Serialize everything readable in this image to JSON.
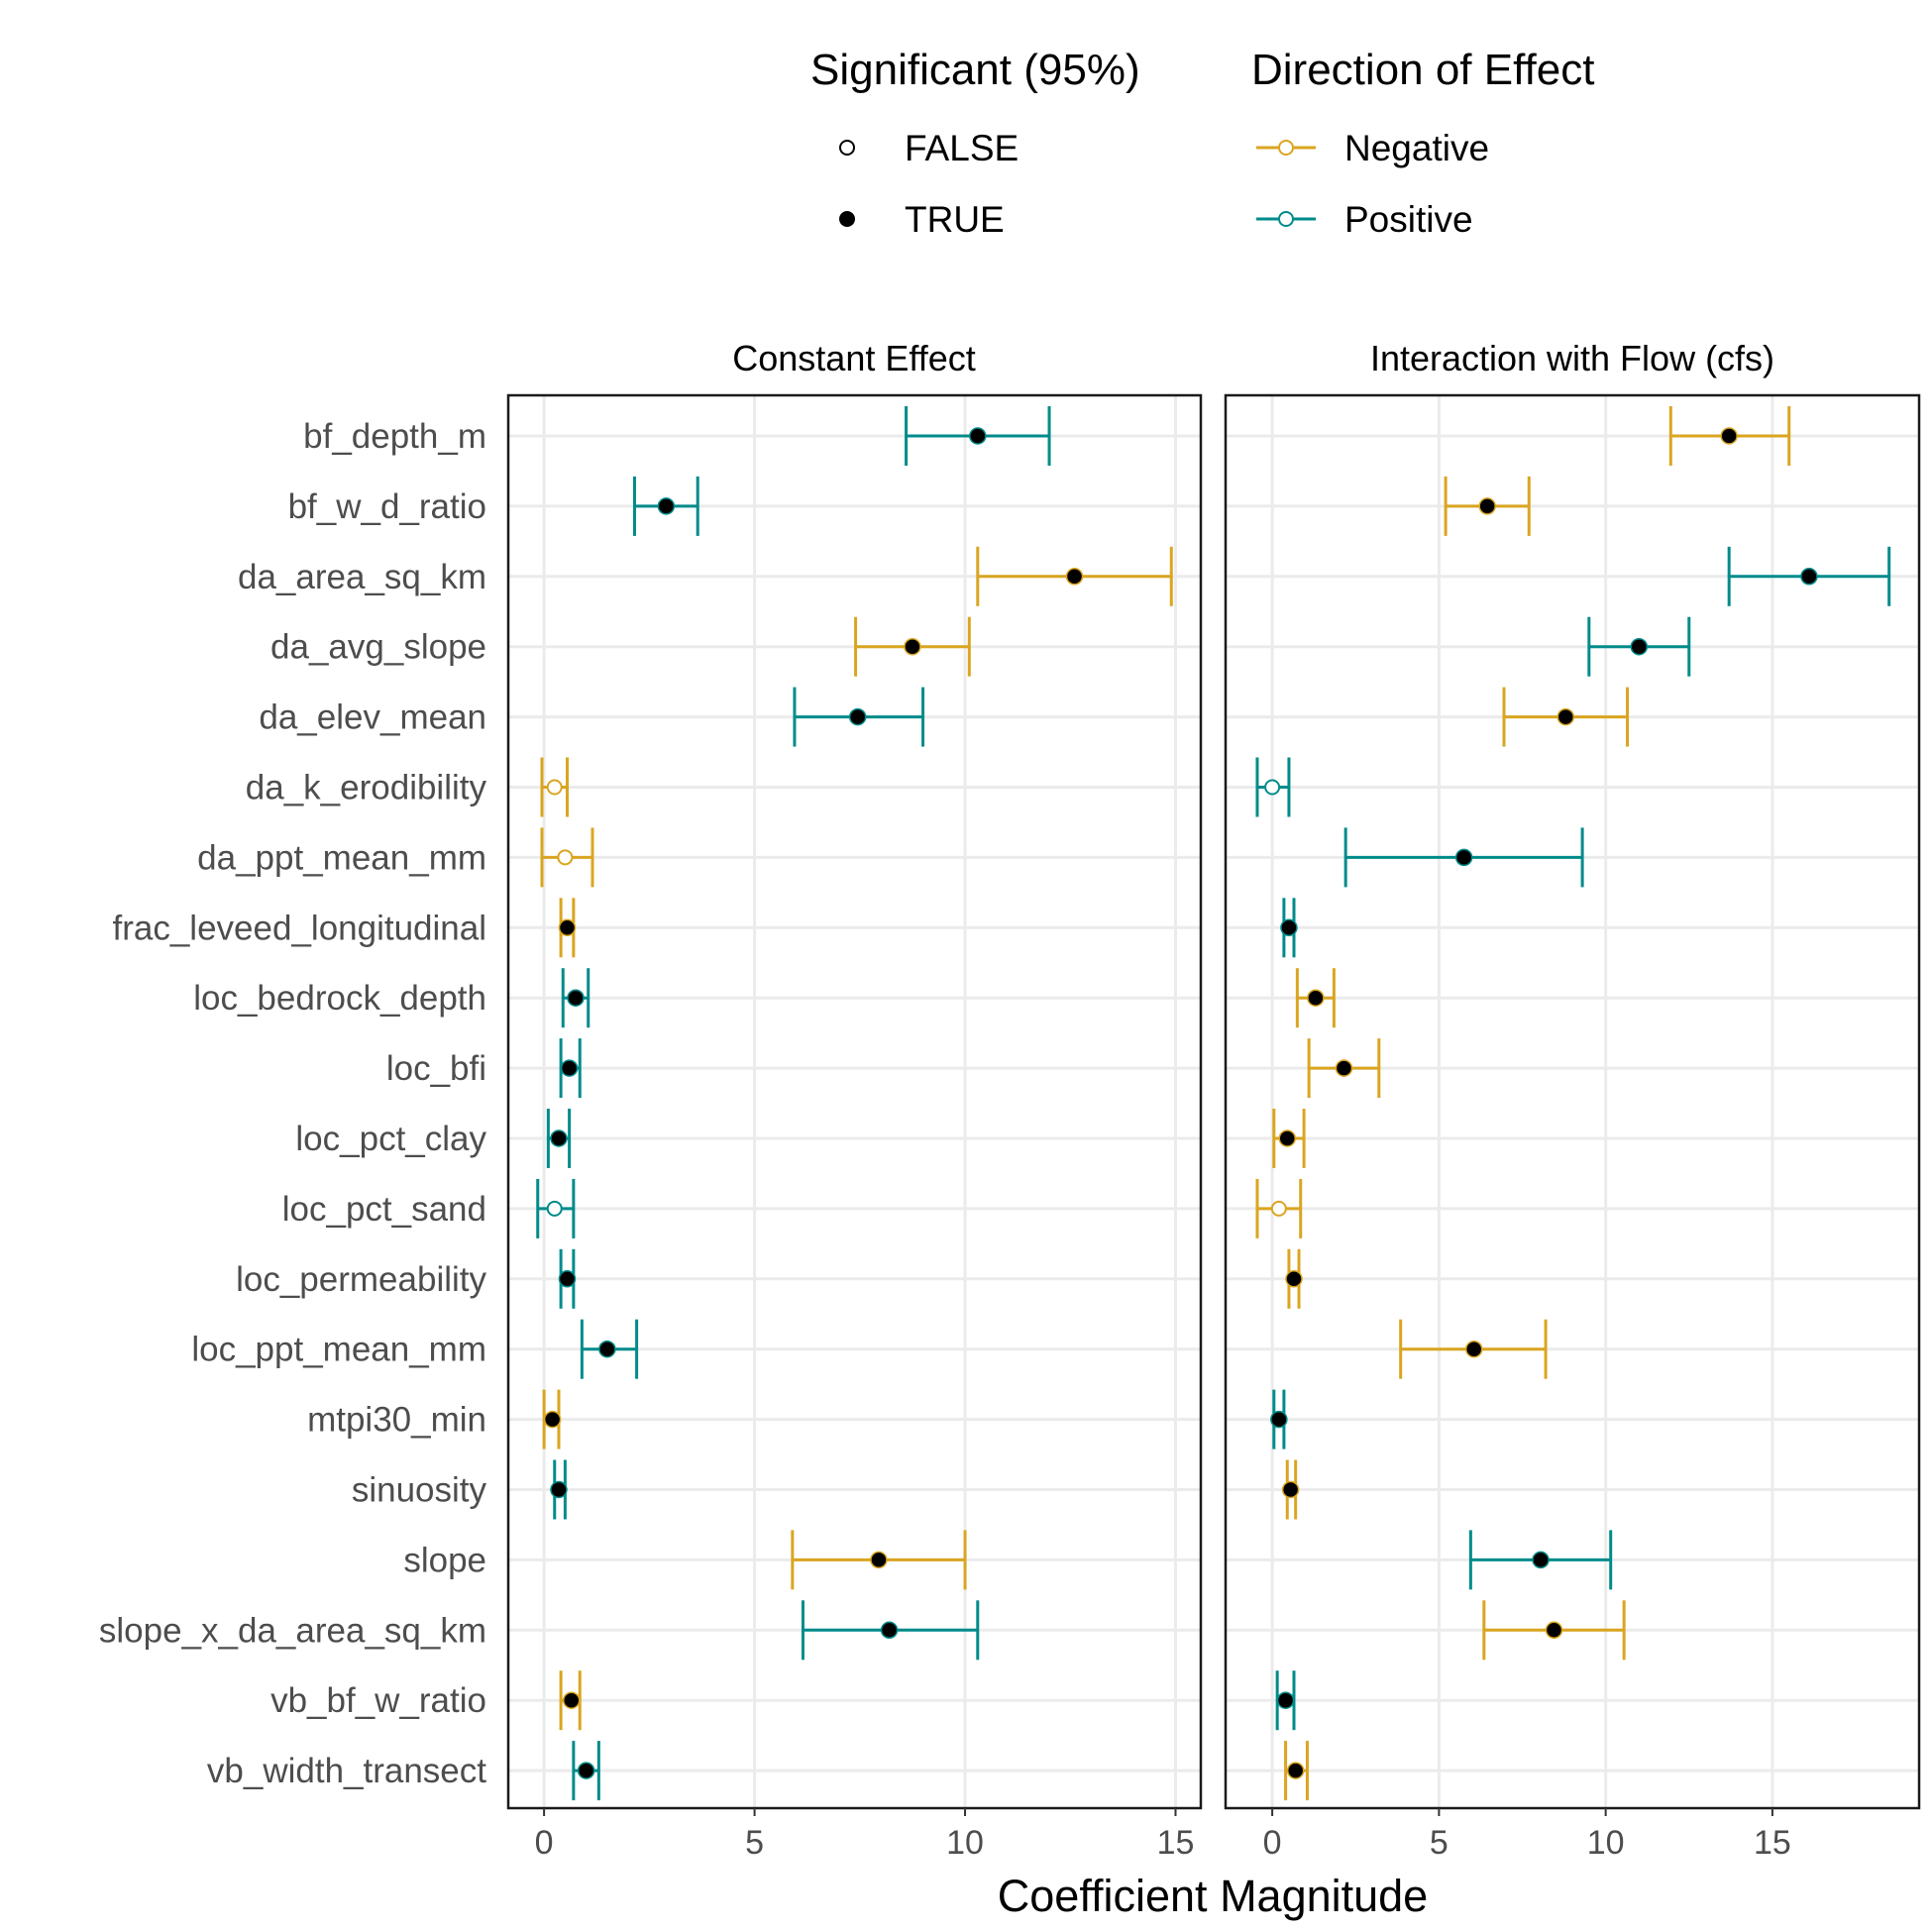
{
  "chart_data": {
    "type": "errorbar",
    "xlabel": "Coefficient Magnitude",
    "colors": {
      "Negative": "#DAA520",
      "Positive": "#008B8B"
    },
    "legend": {
      "placement": "top",
      "significance": {
        "title": "Significant (95%)",
        "entries": [
          "FALSE",
          "TRUE"
        ]
      },
      "direction": {
        "title": "Direction of Effect",
        "entries": [
          "Negative",
          "Positive"
        ]
      }
    },
    "categories": [
      "bf_depth_m",
      "bf_w_d_ratio",
      "da_area_sq_km",
      "da_avg_slope",
      "da_elev_mean",
      "da_k_erodibility",
      "da_ppt_mean_mm",
      "frac_leveed_longitudinal",
      "loc_bedrock_depth",
      "loc_bfi",
      "loc_pct_clay",
      "loc_pct_sand",
      "loc_permeability",
      "loc_ppt_mean_mm",
      "mtpi30_min",
      "sinuosity",
      "slope",
      "slope_x_da_area_sq_km",
      "vb_bf_w_ratio",
      "vb_width_transect"
    ],
    "panels": [
      {
        "title": "Constant Effect",
        "xlim": [
          -0.85,
          15.6
        ],
        "xticks": [
          0,
          5,
          10,
          15
        ],
        "points": [
          {
            "est": 10.3,
            "lo": 8.6,
            "hi": 12.0,
            "dir": "Positive",
            "sig": true
          },
          {
            "est": 2.9,
            "lo": 2.15,
            "hi": 3.65,
            "dir": "Positive",
            "sig": true
          },
          {
            "est": 12.6,
            "lo": 10.3,
            "hi": 14.9,
            "dir": "Negative",
            "sig": true
          },
          {
            "est": 8.75,
            "lo": 7.4,
            "hi": 10.1,
            "dir": "Negative",
            "sig": true
          },
          {
            "est": 7.45,
            "lo": 5.95,
            "hi": 9.0,
            "dir": "Positive",
            "sig": true
          },
          {
            "est": 0.25,
            "lo": -0.05,
            "hi": 0.55,
            "dir": "Negative",
            "sig": false
          },
          {
            "est": 0.5,
            "lo": -0.05,
            "hi": 1.15,
            "dir": "Negative",
            "sig": false
          },
          {
            "est": 0.55,
            "lo": 0.4,
            "hi": 0.7,
            "dir": "Negative",
            "sig": true
          },
          {
            "est": 0.75,
            "lo": 0.45,
            "hi": 1.05,
            "dir": "Positive",
            "sig": true
          },
          {
            "est": 0.6,
            "lo": 0.4,
            "hi": 0.85,
            "dir": "Positive",
            "sig": true
          },
          {
            "est": 0.35,
            "lo": 0.1,
            "hi": 0.6,
            "dir": "Positive",
            "sig": true
          },
          {
            "est": 0.25,
            "lo": -0.15,
            "hi": 0.7,
            "dir": "Positive",
            "sig": false
          },
          {
            "est": 0.55,
            "lo": 0.4,
            "hi": 0.7,
            "dir": "Positive",
            "sig": true
          },
          {
            "est": 1.5,
            "lo": 0.9,
            "hi": 2.2,
            "dir": "Positive",
            "sig": true
          },
          {
            "est": 0.2,
            "lo": 0.0,
            "hi": 0.35,
            "dir": "Negative",
            "sig": true
          },
          {
            "est": 0.35,
            "lo": 0.25,
            "hi": 0.5,
            "dir": "Positive",
            "sig": true
          },
          {
            "est": 7.95,
            "lo": 5.9,
            "hi": 10.0,
            "dir": "Negative",
            "sig": true
          },
          {
            "est": 8.2,
            "lo": 6.15,
            "hi": 10.3,
            "dir": "Positive",
            "sig": true
          },
          {
            "est": 0.65,
            "lo": 0.4,
            "hi": 0.85,
            "dir": "Negative",
            "sig": true
          },
          {
            "est": 1.0,
            "lo": 0.7,
            "hi": 1.3,
            "dir": "Positive",
            "sig": true
          }
        ]
      },
      {
        "title": "Interaction with Flow (cfs)",
        "xlim": [
          -1.4,
          19.4
        ],
        "xticks": [
          0,
          5,
          10,
          15
        ],
        "points": [
          {
            "est": 13.7,
            "lo": 11.95,
            "hi": 15.5,
            "dir": "Negative",
            "sig": true
          },
          {
            "est": 6.45,
            "lo": 5.2,
            "hi": 7.7,
            "dir": "Negative",
            "sig": true
          },
          {
            "est": 16.1,
            "lo": 13.7,
            "hi": 18.5,
            "dir": "Positive",
            "sig": true
          },
          {
            "est": 11.0,
            "lo": 9.5,
            "hi": 12.5,
            "dir": "Positive",
            "sig": true
          },
          {
            "est": 8.8,
            "lo": 6.95,
            "hi": 10.65,
            "dir": "Negative",
            "sig": true
          },
          {
            "est": 0.0,
            "lo": -0.45,
            "hi": 0.5,
            "dir": "Positive",
            "sig": false
          },
          {
            "est": 5.75,
            "lo": 2.2,
            "hi": 9.3,
            "dir": "Positive",
            "sig": true
          },
          {
            "est": 0.5,
            "lo": 0.35,
            "hi": 0.65,
            "dir": "Positive",
            "sig": true
          },
          {
            "est": 1.3,
            "lo": 0.75,
            "hi": 1.85,
            "dir": "Negative",
            "sig": true
          },
          {
            "est": 2.15,
            "lo": 1.1,
            "hi": 3.2,
            "dir": "Negative",
            "sig": true
          },
          {
            "est": 0.45,
            "lo": 0.05,
            "hi": 0.95,
            "dir": "Negative",
            "sig": true
          },
          {
            "est": 0.2,
            "lo": -0.45,
            "hi": 0.85,
            "dir": "Negative",
            "sig": false
          },
          {
            "est": 0.65,
            "lo": 0.5,
            "hi": 0.8,
            "dir": "Negative",
            "sig": true
          },
          {
            "est": 6.05,
            "lo": 3.85,
            "hi": 8.2,
            "dir": "Negative",
            "sig": true
          },
          {
            "est": 0.2,
            "lo": 0.05,
            "hi": 0.35,
            "dir": "Positive",
            "sig": true
          },
          {
            "est": 0.55,
            "lo": 0.45,
            "hi": 0.7,
            "dir": "Negative",
            "sig": true
          },
          {
            "est": 8.05,
            "lo": 5.95,
            "hi": 10.15,
            "dir": "Positive",
            "sig": true
          },
          {
            "est": 8.45,
            "lo": 6.35,
            "hi": 10.55,
            "dir": "Negative",
            "sig": true
          },
          {
            "est": 0.4,
            "lo": 0.15,
            "hi": 0.65,
            "dir": "Positive",
            "sig": true
          },
          {
            "est": 0.7,
            "lo": 0.4,
            "hi": 1.05,
            "dir": "Negative",
            "sig": true
          }
        ]
      }
    ]
  }
}
